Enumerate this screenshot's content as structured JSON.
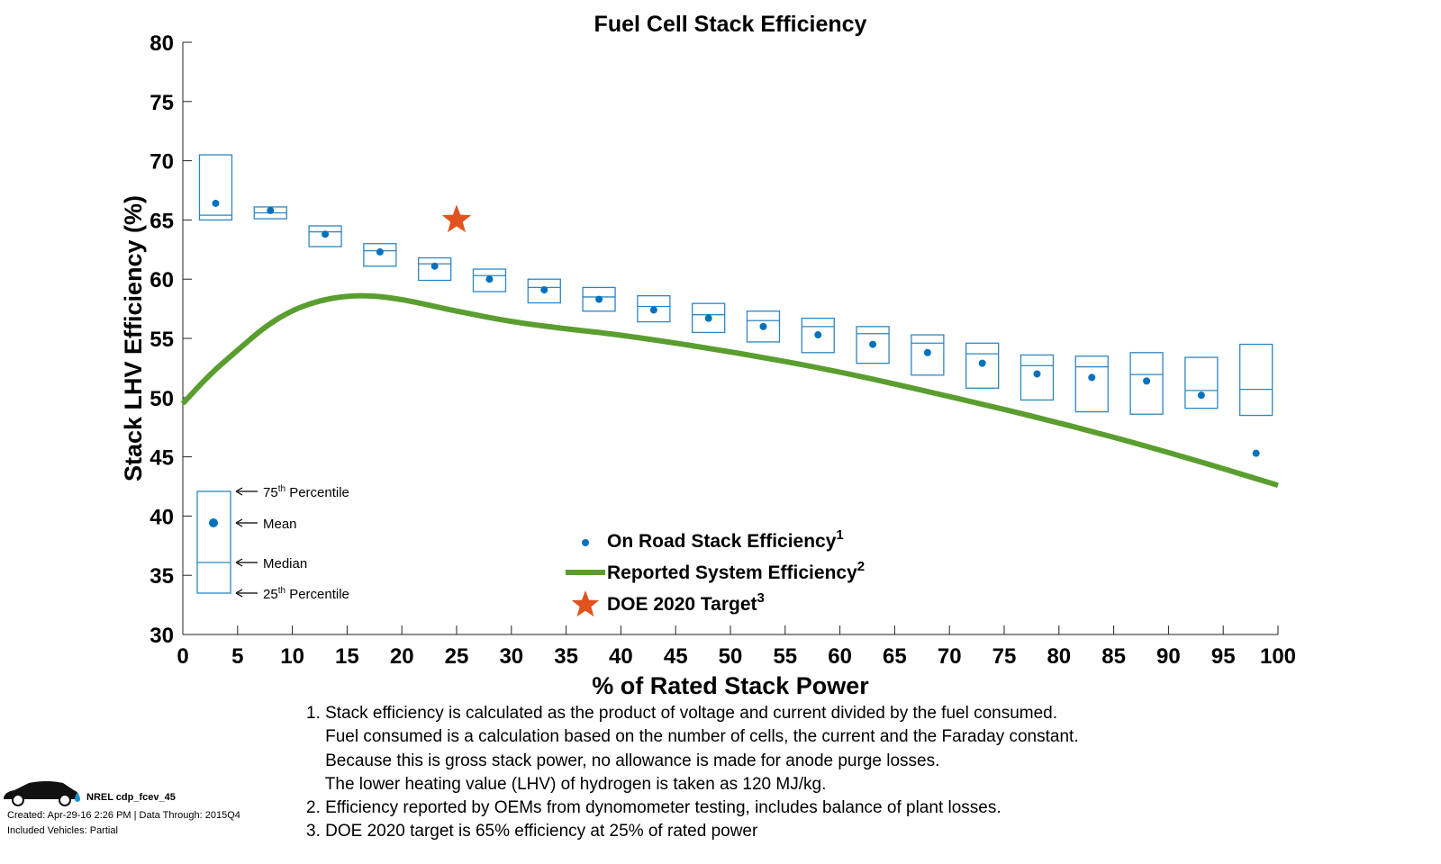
{
  "chart_data": {
    "type": "box+line",
    "title": "Fuel Cell Stack Efficiency",
    "xlabel": "% of Rated Stack Power",
    "ylabel": "Stack LHV Efficiency (%)",
    "xlim": [
      0,
      100
    ],
    "ylim": [
      30,
      80
    ],
    "xticks": [
      "0",
      "5",
      "10",
      "15",
      "20",
      "25",
      "30",
      "35",
      "40",
      "45",
      "50",
      "55",
      "60",
      "65",
      "70",
      "75",
      "80",
      "85",
      "90",
      "95",
      "100"
    ],
    "yticks": [
      "30",
      "35",
      "40",
      "45",
      "50",
      "55",
      "60",
      "65",
      "70",
      "75",
      "80"
    ],
    "grid": false,
    "boxes": {
      "name": "On Road Stack Efficiency",
      "x": [
        3,
        8,
        13,
        18,
        23,
        28,
        33,
        38,
        43,
        48,
        53,
        58,
        63,
        68,
        73,
        78,
        83,
        88,
        93,
        98
      ],
      "p75": [
        70.5,
        66.1,
        64.5,
        63.0,
        61.8,
        60.85,
        60.0,
        59.3,
        58.6,
        57.95,
        57.3,
        56.7,
        56.0,
        55.3,
        54.6,
        53.6,
        53.5,
        53.8,
        53.4,
        54.5
      ],
      "median": [
        65.4,
        65.6,
        64.0,
        62.4,
        61.3,
        60.3,
        59.3,
        58.5,
        57.7,
        57.0,
        56.5,
        56.0,
        55.4,
        54.6,
        53.7,
        52.7,
        52.6,
        51.95,
        50.6,
        50.7
      ],
      "mean": [
        66.4,
        65.8,
        63.8,
        62.3,
        61.1,
        60.0,
        59.1,
        58.3,
        57.4,
        56.7,
        56.0,
        55.3,
        54.5,
        53.8,
        52.9,
        52.0,
        51.7,
        51.4,
        50.2,
        45.3
      ],
      "p25": [
        65.0,
        65.1,
        62.75,
        61.1,
        59.9,
        58.95,
        58.0,
        57.3,
        56.4,
        55.5,
        54.7,
        53.8,
        52.9,
        51.9,
        50.8,
        49.8,
        48.8,
        48.6,
        49.1,
        48.5
      ]
    },
    "line": {
      "name": "Reported System Efficiency",
      "x": [
        0,
        2.5,
        5,
        7.5,
        10,
        12.5,
        15,
        17.5,
        20,
        22.5,
        25,
        30,
        35,
        40,
        50,
        60,
        70,
        80,
        90,
        100
      ],
      "y": [
        49.5,
        52.0,
        54.0,
        56.0,
        57.4,
        58.2,
        58.6,
        58.6,
        58.3,
        57.8,
        57.3,
        56.4,
        55.8,
        55.3,
        53.9,
        52.2,
        50.1,
        47.9,
        45.4,
        42.6
      ]
    },
    "target": {
      "name": "DOE 2020 Target",
      "x": 25,
      "y": 65
    },
    "legend": {
      "placement": "bottom-center",
      "entries": [
        {
          "label": "On Road Stack Efficiency",
          "sup": "1"
        },
        {
          "label": "Reported System Efficiency",
          "sup": "2"
        },
        {
          "label": "DOE 2020 Target",
          "sup": "3"
        }
      ]
    },
    "key": {
      "p75": "75",
      "p75_sup": "th",
      "p75_label": " Percentile",
      "mean": "Mean",
      "median": "Median",
      "p25": "25",
      "p25_sup": "th",
      "p25_label": " Percentile"
    },
    "colors": {
      "box": "#2e86c1",
      "mean": "#0072bd",
      "line": "#5a9e2f",
      "target": "#e0531f"
    }
  },
  "notes": [
    "1. Stack efficiency is calculated as the product of voltage and current divided by the fuel consumed.",
    "    Fuel consumed is a calculation based on the number of cells, the current and the Faraday constant.",
    "    Because this is gross stack power, no allowance is made for anode purge losses.",
    "    The lower heating value (LHV) of hydrogen is taken as 120 MJ/kg.",
    "2. Efficiency reported by OEMs from dynomometer testing, includes balance of plant losses.",
    "3. DOE 2020 target is 65% efficiency at 25% of rated power"
  ],
  "footer": {
    "id": "NREL cdp_fcev_45",
    "created": "Created: Apr-29-16  2:26 PM | Data Through: 2015Q4",
    "vehicles": "Included Vehicles: Partial"
  }
}
